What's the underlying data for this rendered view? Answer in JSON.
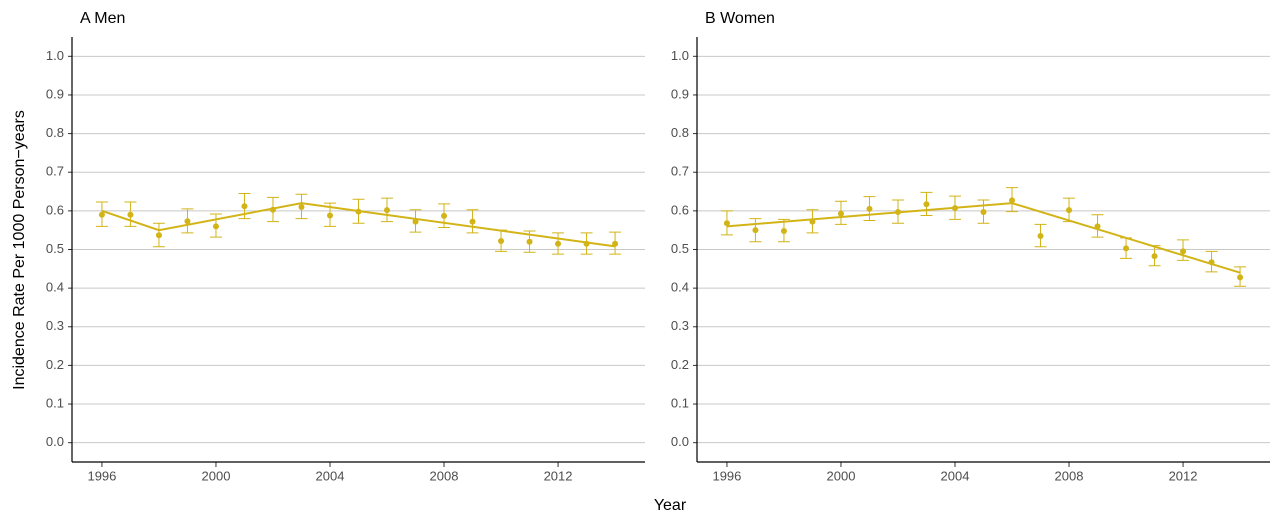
{
  "ylabel": "Incidence Rate Per 1000 Person−years",
  "xlabel": "Year",
  "chart_data": [
    {
      "type": "scatter",
      "title": "A Men",
      "color": "#d2b417",
      "x": [
        1996,
        1997,
        1998,
        1999,
        2000,
        2001,
        2002,
        2003,
        2004,
        2005,
        2006,
        2007,
        2008,
        2009,
        2010,
        2011,
        2012,
        2013,
        2014
      ],
      "values": [
        0.59,
        0.59,
        0.537,
        0.573,
        0.56,
        0.612,
        0.603,
        0.61,
        0.588,
        0.598,
        0.602,
        0.572,
        0.587,
        0.572,
        0.522,
        0.52,
        0.515,
        0.515,
        0.515
      ],
      "lower": [
        0.56,
        0.56,
        0.507,
        0.543,
        0.532,
        0.58,
        0.572,
        0.58,
        0.56,
        0.568,
        0.572,
        0.545,
        0.557,
        0.543,
        0.495,
        0.493,
        0.488,
        0.488,
        0.488
      ],
      "upper": [
        0.623,
        0.623,
        0.568,
        0.605,
        0.592,
        0.645,
        0.635,
        0.643,
        0.62,
        0.63,
        0.633,
        0.603,
        0.618,
        0.603,
        0.55,
        0.548,
        0.543,
        0.543,
        0.545
      ],
      "fit": {
        "x": [
          1996,
          1998,
          2003,
          2014
        ],
        "values": [
          0.6,
          0.55,
          0.62,
          0.508
        ]
      },
      "xlim": [
        1994.95,
        2015.05
      ],
      "xticks": [
        1996,
        2000,
        2004,
        2008,
        2012
      ],
      "ylim": [
        -0.05,
        1.05
      ],
      "yticks": [
        {
          "value": 0,
          "label": "0.0"
        },
        0.1,
        0.2,
        0.3,
        0.4,
        0.5,
        0.6,
        0.7,
        0.8,
        0.9,
        {
          "value": 1,
          "label": "1.0"
        }
      ],
      "grid": true
    },
    {
      "type": "scatter",
      "title": "B Women",
      "color": "#d2b417",
      "x": [
        1996,
        1997,
        1998,
        1999,
        2000,
        2001,
        2002,
        2003,
        2004,
        2005,
        2006,
        2007,
        2008,
        2009,
        2010,
        2011,
        2012,
        2013,
        2014
      ],
      "values": [
        0.568,
        0.55,
        0.548,
        0.572,
        0.593,
        0.605,
        0.597,
        0.617,
        0.607,
        0.597,
        0.627,
        0.535,
        0.602,
        0.56,
        0.503,
        0.483,
        0.495,
        0.467,
        0.428
      ],
      "lower": [
        0.538,
        0.52,
        0.52,
        0.543,
        0.565,
        0.575,
        0.568,
        0.588,
        0.578,
        0.568,
        0.598,
        0.507,
        0.572,
        0.532,
        0.477,
        0.458,
        0.472,
        0.442,
        0.405
      ],
      "upper": [
        0.6,
        0.58,
        0.578,
        0.603,
        0.625,
        0.637,
        0.628,
        0.648,
        0.638,
        0.628,
        0.66,
        0.565,
        0.633,
        0.59,
        0.53,
        0.51,
        0.525,
        0.495,
        0.455
      ],
      "fit": {
        "x": [
          1996,
          2006,
          2014
        ],
        "values": [
          0.56,
          0.62,
          0.44
        ]
      },
      "xlim": [
        1994.95,
        2015.05
      ],
      "xticks": [
        1996,
        2000,
        2004,
        2008,
        2012
      ],
      "ylim": [
        -0.05,
        1.05
      ],
      "yticks": [
        {
          "value": 0,
          "label": "0.0"
        },
        0.1,
        0.2,
        0.3,
        0.4,
        0.5,
        0.6,
        0.7,
        0.8,
        0.9,
        {
          "value": 1,
          "label": "1.0"
        }
      ],
      "grid": true
    }
  ]
}
